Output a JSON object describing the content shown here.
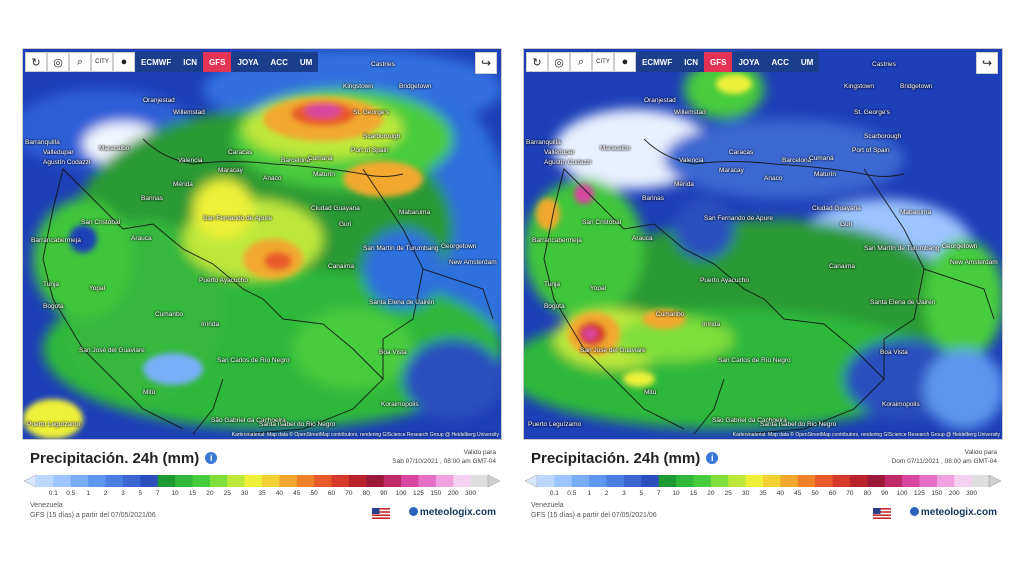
{
  "panels": [
    {
      "toolbar": {
        "city_label": "CITY",
        "models": [
          "ECMWF",
          "ICN",
          "GFS",
          "JOYA",
          "ACC",
          "UM"
        ],
        "active_model": "GFS"
      },
      "title": "Precipitación. 24h (mm)",
      "valid_label": "Valido para",
      "valid_date": "Sáb 07/10/2021 , 08:00 am GMT-04",
      "region": "Venezuela",
      "model_run": "GFS (15 días) a partir del 07/05/2021/06",
      "brand": "meteologix.com",
      "credit": "Kartenmaterial: Map data © OpenStreetMap contributors, rendering GIScience Research Group @ Heidelberg University",
      "cities": [
        "Oranjestad",
        "Willemstad",
        "Barranquilla",
        "Maracaibo",
        "Valencia",
        "Caracas",
        "Barcelona",
        "Maracay",
        "Anaco",
        "Maturín",
        "Port of Spain",
        "Scarborough",
        "Kingstown",
        "Bridgetown",
        "St. George's",
        "Castries",
        "Cumaná",
        "Mérida",
        "Barinas",
        "San Cristóbal",
        "Barrancabermeja",
        "Arauca",
        "Ciudad Guayana",
        "Mabaruma",
        "Georgetown",
        "New Amsterdam",
        "San Martín de Turumbang",
        "Canaima",
        "Tunja",
        "Bogotá",
        "Yopal",
        "Puerto Ayacucho",
        "Cumaribo",
        "Santa Elena de Uairén",
        "Inírida",
        "San José del Guaviare",
        "Boa Vista",
        "San Carlos de Río Negro",
        "Mitú",
        "Koraimopolis",
        "São Gabriel da Cachoeira",
        "Santa Isabel do Rio Negro",
        "Puerto Leguízamo",
        "San Fernando de Apure",
        "Guri",
        "Valledupar",
        "Agustín Codazzi"
      ]
    },
    {
      "toolbar": {
        "city_label": "CITY",
        "models": [
          "ECMWF",
          "ICN",
          "GFS",
          "JOYA",
          "ACC",
          "UM"
        ],
        "active_model": "GFS"
      },
      "title": "Precipitación. 24h (mm)",
      "valid_label": "Valido para",
      "valid_date": "Dom 07/11/2021 , 08:00 am GMT-04",
      "region": "Venezuela",
      "model_run": "GFS (15 días) a partir del 07/05/2021/06",
      "brand": "meteologix.com",
      "credit": "Kartenmaterial: Map data © OpenStreetMap contributors, rendering GIScience Research Group @ Heidelberg University",
      "cities": [
        "Oranjestad",
        "Willemstad",
        "Barranquilla",
        "Maracaibo",
        "Valencia",
        "Caracas",
        "Barcelona",
        "Maracay",
        "Anaco",
        "Maturín",
        "Port of Spain",
        "Scarborough",
        "Kingstown",
        "Bridgetown",
        "St. George's",
        "Castries",
        "Cumaná",
        "Mérida",
        "Barinas",
        "San Cristóbal",
        "Barrancabermeja",
        "Arauca",
        "Ciudad Guayana",
        "Mabaruma",
        "Georgetown",
        "New Amsterdam",
        "San Martín de Turumbang",
        "Canaima",
        "Tunja",
        "Bogotá",
        "Yopal",
        "Puerto Ayacucho",
        "Cumaribo",
        "Santa Elena de Uairén",
        "Inírida",
        "San José del Guaviare",
        "Boa Vista",
        "San Carlos de Río Negro",
        "Mitú",
        "Koraimopolis",
        "São Gabriel da Cachoeira",
        "Santa Isabel do Rio Negro",
        "Puerto Leguízamo",
        "San Fernando de Apure",
        "Guri",
        "Valledupar",
        "Agustín Codazzi"
      ]
    }
  ],
  "scale": {
    "ticks": [
      "0.1",
      "0.5",
      "1",
      "2",
      "3",
      "5",
      "7",
      "10",
      "15",
      "20",
      "25",
      "30",
      "35",
      "40",
      "45",
      "50",
      "60",
      "70",
      "80",
      "90",
      "100",
      "125",
      "150",
      "200",
      "300"
    ],
    "colors": [
      "#bcd7ff",
      "#9cc4ff",
      "#78aef8",
      "#5d96ee",
      "#4a7fe2",
      "#3a67d1",
      "#2a50be",
      "#1f9a33",
      "#2fb83a",
      "#46cc3c",
      "#7ede3a",
      "#bde83a",
      "#eef038",
      "#f2d133",
      "#f2a82e",
      "#ef8129",
      "#e85a2a",
      "#d63a2a",
      "#b9222a",
      "#9c1a38",
      "#c02a6a",
      "#d747a0",
      "#e56fc5",
      "#f0a0df",
      "#f6d0f0",
      "#dedede"
    ]
  },
  "icons": [
    "refresh-icon",
    "location-pin-icon",
    "zoom-icon",
    "city-icon",
    "dot-icon",
    "share-icon",
    "info-icon",
    "us-flag-icon"
  ]
}
